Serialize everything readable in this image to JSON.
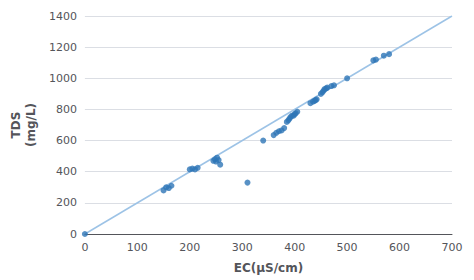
{
  "chart_data": {
    "type": "scatter",
    "xlabel": "EC(μS/cm)",
    "ylabel": "TDS\n(mg/L)",
    "xlim": [
      0,
      700
    ],
    "ylim": [
      0,
      1400
    ],
    "xticks": [
      0,
      100,
      200,
      300,
      400,
      500,
      600,
      700
    ],
    "yticks": [
      0,
      200,
      400,
      600,
      800,
      1000,
      1200,
      1400
    ],
    "grid": true,
    "series": [
      {
        "type": "scatter",
        "color": "#2E75B6",
        "x": [
          0,
          150,
          155,
          160,
          165,
          200,
          205,
          210,
          215,
          245,
          248,
          250,
          252,
          255,
          258,
          310,
          340,
          360,
          365,
          370,
          375,
          380,
          385,
          388,
          390,
          392,
          395,
          398,
          400,
          402,
          405,
          430,
          435,
          438,
          440,
          442,
          450,
          453,
          455,
          457,
          460,
          462,
          470,
          475,
          500,
          550,
          555,
          570,
          580
        ],
        "values": [
          0,
          280,
          300,
          295,
          310,
          415,
          420,
          415,
          425,
          470,
          480,
          465,
          490,
          475,
          445,
          330,
          600,
          635,
          650,
          660,
          665,
          680,
          720,
          730,
          740,
          750,
          760,
          760,
          770,
          775,
          785,
          840,
          850,
          855,
          860,
          865,
          900,
          910,
          920,
          930,
          935,
          940,
          950,
          955,
          1000,
          1115,
          1120,
          1145,
          1155
        ]
      },
      {
        "type": "line",
        "color": "#9DC3E6",
        "x": [
          0,
          700
        ],
        "values": [
          0,
          1400
        ]
      }
    ]
  }
}
